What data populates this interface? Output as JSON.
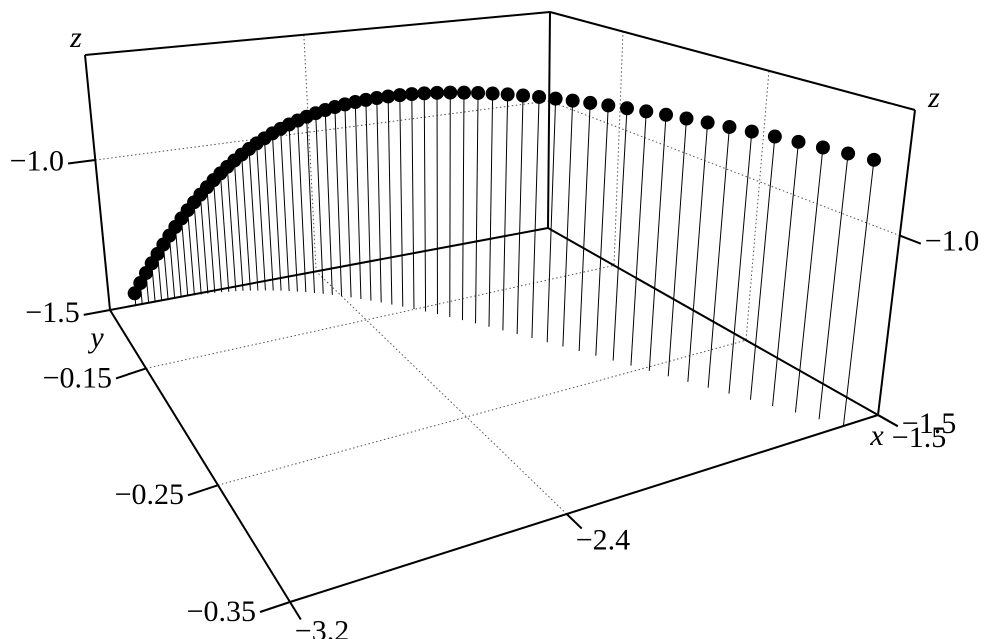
{
  "chart_data": {
    "type": "stem3d",
    "xlabel": "x",
    "ylabel": "y",
    "zlabel": "z",
    "xlim": [
      -3.2,
      -1.5
    ],
    "ylim": [
      -0.35,
      -0.1
    ],
    "zlim": [
      -1.5,
      -0.65
    ],
    "xticks": [
      {
        "value": -3.2,
        "label": "−3.2"
      },
      {
        "value": -2.4,
        "label": "−2.4"
      },
      {
        "value": -1.5,
        "label": "−1.5"
      }
    ],
    "yticks": [
      {
        "value": -0.35,
        "label": "−0.35"
      },
      {
        "value": -0.25,
        "label": "−0.25"
      },
      {
        "value": -0.15,
        "label": "−0.15"
      }
    ],
    "zticks": [
      {
        "value": -1.5,
        "label": "−1.5"
      },
      {
        "value": -1.0,
        "label": "−1.0"
      }
    ],
    "grid": true,
    "color": "#000000",
    "series": [
      {
        "x": [
          -3.1,
          -3.075,
          -3.05,
          -3.025,
          -3.0,
          -2.975,
          -2.95,
          -2.925,
          -2.9,
          -2.875,
          -2.85,
          -2.825,
          -2.8,
          -2.775,
          -2.75,
          -2.725,
          -2.7,
          -2.675,
          -2.65,
          -2.625,
          -2.6,
          -2.575,
          -2.55,
          -2.525,
          -2.5,
          -2.475,
          -2.45,
          -2.425,
          -2.4,
          -2.375,
          -2.35,
          -2.325,
          -2.3,
          -2.275,
          -2.25,
          -2.225,
          -2.2,
          -2.175,
          -2.15,
          -2.125,
          -2.1,
          -2.075,
          -2.05,
          -2.025,
          -2.0,
          -1.975,
          -1.95,
          -1.925,
          -1.9,
          -1.875,
          -1.85,
          -1.825,
          -1.8,
          -1.775,
          -1.75,
          -1.725,
          -1.7,
          -1.675,
          -1.65,
          -1.625,
          -1.6
        ],
        "y": [
          -0.1,
          -0.1,
          -0.1,
          -0.1,
          -0.1001,
          -0.1001,
          -0.1003,
          -0.1004,
          -0.1006,
          -0.1008,
          -0.1012,
          -0.1015,
          -0.102,
          -0.1025,
          -0.1032,
          -0.1039,
          -0.1047,
          -0.1057,
          -0.1068,
          -0.1079,
          -0.1093,
          -0.1107,
          -0.1123,
          -0.1141,
          -0.116,
          -0.1181,
          -0.1203,
          -0.1228,
          -0.1254,
          -0.1282,
          -0.1313,
          -0.1345,
          -0.1379,
          -0.1416,
          -0.1455,
          -0.1496,
          -0.154,
          -0.1586,
          -0.1635,
          -0.1687,
          -0.1741,
          -0.1798,
          -0.1858,
          -0.192,
          -0.1986,
          -0.2055,
          -0.2127,
          -0.2202,
          -0.228,
          -0.2362,
          -0.2447,
          -0.2535,
          -0.2627,
          -0.2723,
          -0.2823,
          -0.2926,
          -0.3033,
          -0.3143,
          -0.3258,
          -0.3377,
          -0.35
        ],
        "z": [
          -1.46,
          -1.4295,
          -1.3996,
          -1.3704,
          -1.3418,
          -1.3139,
          -1.2866,
          -1.2599,
          -1.2339,
          -1.2085,
          -1.1838,
          -1.1597,
          -1.1362,
          -1.1134,
          -1.0913,
          -1.0698,
          -1.0489,
          -1.0286,
          -1.009,
          -0.9901,
          -0.9718,
          -0.9541,
          -0.9371,
          -0.9207,
          -0.905,
          -0.8899,
          -0.8754,
          -0.8616,
          -0.8484,
          -0.8359,
          -0.824,
          -0.8128,
          -0.8022,
          -0.7922,
          -0.7829,
          -0.7742,
          -0.7662,
          -0.7588,
          -0.752,
          -0.7459,
          -0.7405,
          -0.7356,
          -0.7314,
          -0.7279,
          -0.725,
          -0.7228,
          -0.7211,
          -0.7202,
          -0.7198,
          -0.7202,
          -0.7211,
          -0.7227,
          -0.7249,
          -0.7278,
          -0.7314,
          -0.7355,
          -0.7403,
          -0.7458,
          -0.7519,
          -0.7586,
          -0.766
        ]
      }
    ]
  }
}
